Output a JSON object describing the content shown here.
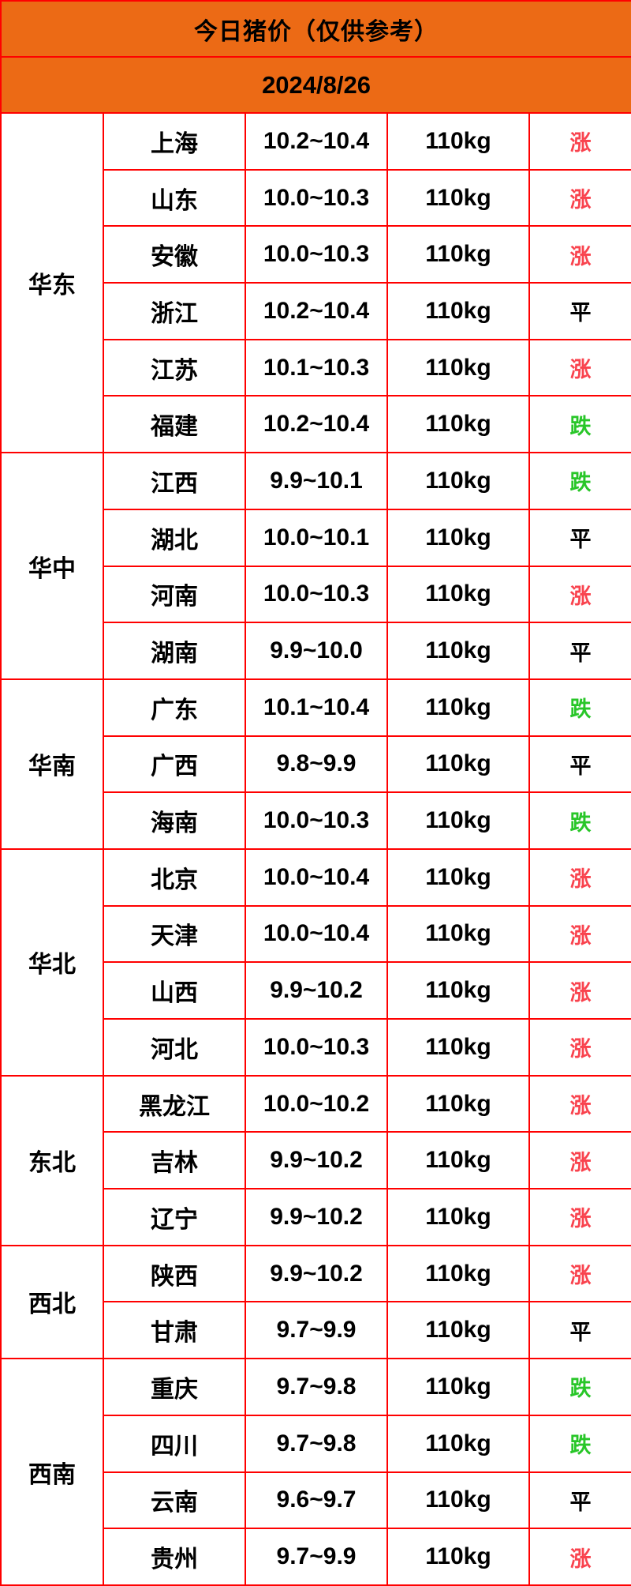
{
  "title": "今日猪价（仅供参考）",
  "date": "2024/8/26",
  "colors": {
    "header_bg": "#ec6a15",
    "border": "#ff0000",
    "cell_bg": "#ffffff",
    "text": "#000000"
  },
  "trend_colors": {
    "涨": "#f9434e",
    "平": "#000000",
    "跌": "#28c628"
  },
  "regions": [
    {
      "name": "华东",
      "rows": [
        {
          "province": "上海",
          "price": "10.2~10.4",
          "weight": "110kg",
          "trend": "涨"
        },
        {
          "province": "山东",
          "price": "10.0~10.3",
          "weight": "110kg",
          "trend": "涨"
        },
        {
          "province": "安徽",
          "price": "10.0~10.3",
          "weight": "110kg",
          "trend": "涨"
        },
        {
          "province": "浙江",
          "price": "10.2~10.4",
          "weight": "110kg",
          "trend": "平"
        },
        {
          "province": "江苏",
          "price": "10.1~10.3",
          "weight": "110kg",
          "trend": "涨"
        },
        {
          "province": "福建",
          "price": "10.2~10.4",
          "weight": "110kg",
          "trend": "跌"
        }
      ]
    },
    {
      "name": "华中",
      "rows": [
        {
          "province": "江西",
          "price": "9.9~10.1",
          "weight": "110kg",
          "trend": "跌"
        },
        {
          "province": "湖北",
          "price": "10.0~10.1",
          "weight": "110kg",
          "trend": "平"
        },
        {
          "province": "河南",
          "price": "10.0~10.3",
          "weight": "110kg",
          "trend": "涨"
        },
        {
          "province": "湖南",
          "price": "9.9~10.0",
          "weight": "110kg",
          "trend": "平"
        }
      ]
    },
    {
      "name": "华南",
      "rows": [
        {
          "province": "广东",
          "price": "10.1~10.4",
          "weight": "110kg",
          "trend": "跌"
        },
        {
          "province": "广西",
          "price": "9.8~9.9",
          "weight": "110kg",
          "trend": "平"
        },
        {
          "province": "海南",
          "price": "10.0~10.3",
          "weight": "110kg",
          "trend": "跌"
        }
      ]
    },
    {
      "name": "华北",
      "rows": [
        {
          "province": "北京",
          "price": "10.0~10.4",
          "weight": "110kg",
          "trend": "涨"
        },
        {
          "province": "天津",
          "price": "10.0~10.4",
          "weight": "110kg",
          "trend": "涨"
        },
        {
          "province": "山西",
          "price": "9.9~10.2",
          "weight": "110kg",
          "trend": "涨"
        },
        {
          "province": "河北",
          "price": "10.0~10.3",
          "weight": "110kg",
          "trend": "涨"
        }
      ]
    },
    {
      "name": "东北",
      "rows": [
        {
          "province": "黑龙江",
          "price": "10.0~10.2",
          "weight": "110kg",
          "trend": "涨"
        },
        {
          "province": "吉林",
          "price": "9.9~10.2",
          "weight": "110kg",
          "trend": "涨"
        },
        {
          "province": "辽宁",
          "price": "9.9~10.2",
          "weight": "110kg",
          "trend": "涨"
        }
      ]
    },
    {
      "name": "西北",
      "rows": [
        {
          "province": "陕西",
          "price": "9.9~10.2",
          "weight": "110kg",
          "trend": "涨"
        },
        {
          "province": "甘肃",
          "price": "9.7~9.9",
          "weight": "110kg",
          "trend": "平"
        }
      ]
    },
    {
      "name": "西南",
      "rows": [
        {
          "province": "重庆",
          "price": "9.7~9.8",
          "weight": "110kg",
          "trend": "跌"
        },
        {
          "province": "四川",
          "price": "9.7~9.8",
          "weight": "110kg",
          "trend": "跌"
        },
        {
          "province": "云南",
          "price": "9.6~9.7",
          "weight": "110kg",
          "trend": "平"
        },
        {
          "province": "贵州",
          "price": "9.7~9.9",
          "weight": "110kg",
          "trend": "涨"
        }
      ]
    }
  ],
  "chart_data": {
    "type": "table",
    "title": "今日猪价（仅供参考）",
    "date": "2024/8/26",
    "rows": [
      [
        "华东",
        "上海",
        "10.2~10.4",
        "110kg",
        "涨"
      ],
      [
        "华东",
        "山东",
        "10.0~10.3",
        "110kg",
        "涨"
      ],
      [
        "华东",
        "安徽",
        "10.0~10.3",
        "110kg",
        "涨"
      ],
      [
        "华东",
        "浙江",
        "10.2~10.4",
        "110kg",
        "平"
      ],
      [
        "华东",
        "江苏",
        "10.1~10.3",
        "110kg",
        "涨"
      ],
      [
        "华东",
        "福建",
        "10.2~10.4",
        "110kg",
        "跌"
      ],
      [
        "华中",
        "江西",
        "9.9~10.1",
        "110kg",
        "跌"
      ],
      [
        "华中",
        "湖北",
        "10.0~10.1",
        "110kg",
        "平"
      ],
      [
        "华中",
        "河南",
        "10.0~10.3",
        "110kg",
        "涨"
      ],
      [
        "华中",
        "湖南",
        "9.9~10.0",
        "110kg",
        "平"
      ],
      [
        "华南",
        "广东",
        "10.1~10.4",
        "110kg",
        "跌"
      ],
      [
        "华南",
        "广西",
        "9.8~9.9",
        "110kg",
        "平"
      ],
      [
        "华南",
        "海南",
        "10.0~10.3",
        "110kg",
        "跌"
      ],
      [
        "华北",
        "北京",
        "10.0~10.4",
        "110kg",
        "涨"
      ],
      [
        "华北",
        "天津",
        "10.0~10.4",
        "110kg",
        "涨"
      ],
      [
        "华北",
        "山西",
        "9.9~10.2",
        "110kg",
        "涨"
      ],
      [
        "华北",
        "河北",
        "10.0~10.3",
        "110kg",
        "涨"
      ],
      [
        "东北",
        "黑龙江",
        "10.0~10.2",
        "110kg",
        "涨"
      ],
      [
        "东北",
        "吉林",
        "9.9~10.2",
        "110kg",
        "涨"
      ],
      [
        "东北",
        "辽宁",
        "9.9~10.2",
        "110kg",
        "涨"
      ],
      [
        "西北",
        "陕西",
        "9.9~10.2",
        "110kg",
        "涨"
      ],
      [
        "西北",
        "甘肃",
        "9.7~9.9",
        "110kg",
        "平"
      ],
      [
        "西南",
        "重庆",
        "9.7~9.8",
        "110kg",
        "跌"
      ],
      [
        "西南",
        "四川",
        "9.7~9.8",
        "110kg",
        "跌"
      ],
      [
        "西南",
        "云南",
        "9.6~9.7",
        "110kg",
        "平"
      ],
      [
        "西南",
        "贵州",
        "9.7~9.9",
        "110kg",
        "涨"
      ]
    ]
  }
}
